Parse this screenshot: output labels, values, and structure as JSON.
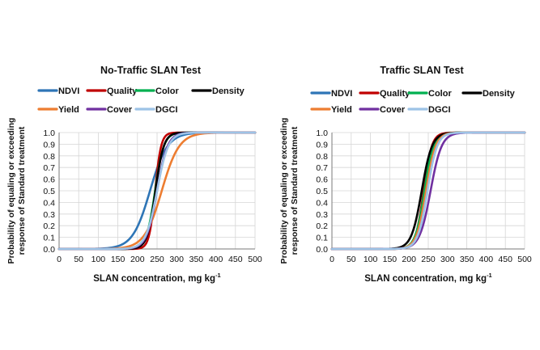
{
  "chart_data": [
    {
      "type": "line",
      "title": "No-Traffic SLAN Test",
      "xlabel": "SLAN concentration, mg kg",
      "xlabel_sup": "-1",
      "ylabel": [
        "Probability of equaling or exceeding",
        "response of Standard treatment"
      ],
      "xlim": [
        0,
        500
      ],
      "ylim": [
        0,
        1
      ],
      "x_ticks": [
        "0",
        "50",
        "100",
        "150",
        "200",
        "250",
        "300",
        "350",
        "400",
        "450",
        "500"
      ],
      "y_ticks": [
        "0.0",
        "0.1",
        "0.2",
        "0.3",
        "0.4",
        "0.5",
        "0.6",
        "0.7",
        "0.8",
        "0.9",
        "1.0"
      ],
      "grid": true,
      "legend_position": "top",
      "series": [
        {
          "name": "NDVI",
          "color": "#2e75b6",
          "midpoint": 232,
          "slope": 0.045
        },
        {
          "name": "Quality",
          "color": "#c00000",
          "midpoint": 245,
          "slope": 0.13
        },
        {
          "name": "Color",
          "color": "#00b050",
          "midpoint": 245,
          "slope": 0.09
        },
        {
          "name": "Density",
          "color": "#000000",
          "midpoint": 246,
          "slope": 0.095
        },
        {
          "name": "Yield",
          "color": "#ed7d31",
          "midpoint": 262,
          "slope": 0.045
        },
        {
          "name": "Cover",
          "color": "#7030a0",
          "midpoint": 250,
          "slope": 0.075
        },
        {
          "name": "DGCI",
          "color": "#9dc3e6",
          "midpoint": 250,
          "slope": 0.07
        }
      ]
    },
    {
      "type": "line",
      "title": "Traffic SLAN Test",
      "xlabel": "SLAN concentration, mg kg",
      "xlabel_sup": "-1",
      "ylabel": [
        "Probability of equaling or exceeding",
        "response of Standard treatment"
      ],
      "xlim": [
        0,
        500
      ],
      "ylim": [
        0,
        1
      ],
      "x_ticks": [
        "0",
        "50",
        "100",
        "150",
        "200",
        "250",
        "300",
        "350",
        "400",
        "450",
        "500"
      ],
      "y_ticks": [
        "0.0",
        "0.1",
        "0.2",
        "0.3",
        "0.4",
        "0.5",
        "0.6",
        "0.7",
        "0.8",
        "0.9",
        "1.0"
      ],
      "grid": true,
      "legend_position": "top",
      "series": [
        {
          "name": "NDVI",
          "color": "#2e75b6",
          "midpoint": 242,
          "slope": 0.085
        },
        {
          "name": "Quality",
          "color": "#c00000",
          "midpoint": 238,
          "slope": 0.095
        },
        {
          "name": "Color",
          "color": "#00b050",
          "midpoint": 240,
          "slope": 0.085
        },
        {
          "name": "Density",
          "color": "#000000",
          "midpoint": 233,
          "slope": 0.075
        },
        {
          "name": "Yield",
          "color": "#ed7d31",
          "midpoint": 244,
          "slope": 0.08
        },
        {
          "name": "Cover",
          "color": "#7030a0",
          "midpoint": 256,
          "slope": 0.07
        },
        {
          "name": "DGCI",
          "color": "#9dc3e6",
          "midpoint": 248,
          "slope": 0.08
        }
      ]
    }
  ]
}
